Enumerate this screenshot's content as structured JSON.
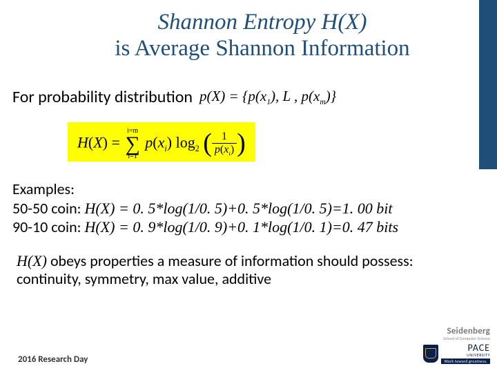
{
  "accent_color": "#1f4e79",
  "highlight_color": "#ffff00",
  "title": {
    "line1": "Shannon Entropy H(X)",
    "line2": "is Average Shannon Information"
  },
  "prob_label": "For probability distribution",
  "prob_formula": "p(X) = { p(x₁), … , p(xₘ) }",
  "formula": {
    "lhs": "H(X) =",
    "sum_top": "i=m",
    "sum_bottom": "i=1",
    "px": "p(xᵢ)",
    "logbase": "log₂",
    "frac_num": "1",
    "frac_den": "p(xᵢ)"
  },
  "examples": {
    "heading": "Examples:",
    "row1_label": "50-50 coin: ",
    "row1_hx": "H(X)",
    "row1_eq": " = 0. 5*log(1/0. 5)+0. 5*log(1/0. 5)=1. 00 bit",
    "row2_label": "90-10 coin: ",
    "row2_hx": "H(X)",
    "row2_eq": " = 0. 9*log(1/0. 9)+0. 1*log(1/0. 1)=0. 47 bits"
  },
  "properties": {
    "hx": "H(X)",
    "text": " obeys properties a measure of information should possess: continuity, symmetry, max value, additive"
  },
  "footer": "2016 Research Day",
  "logo": {
    "seidenberg": "Seidenberg",
    "seidenberg_sub": "School of Computer Science",
    "pace": "PACE",
    "pace_uni": "UNIVERSITY",
    "pace_tag": "Work toward greatness."
  }
}
